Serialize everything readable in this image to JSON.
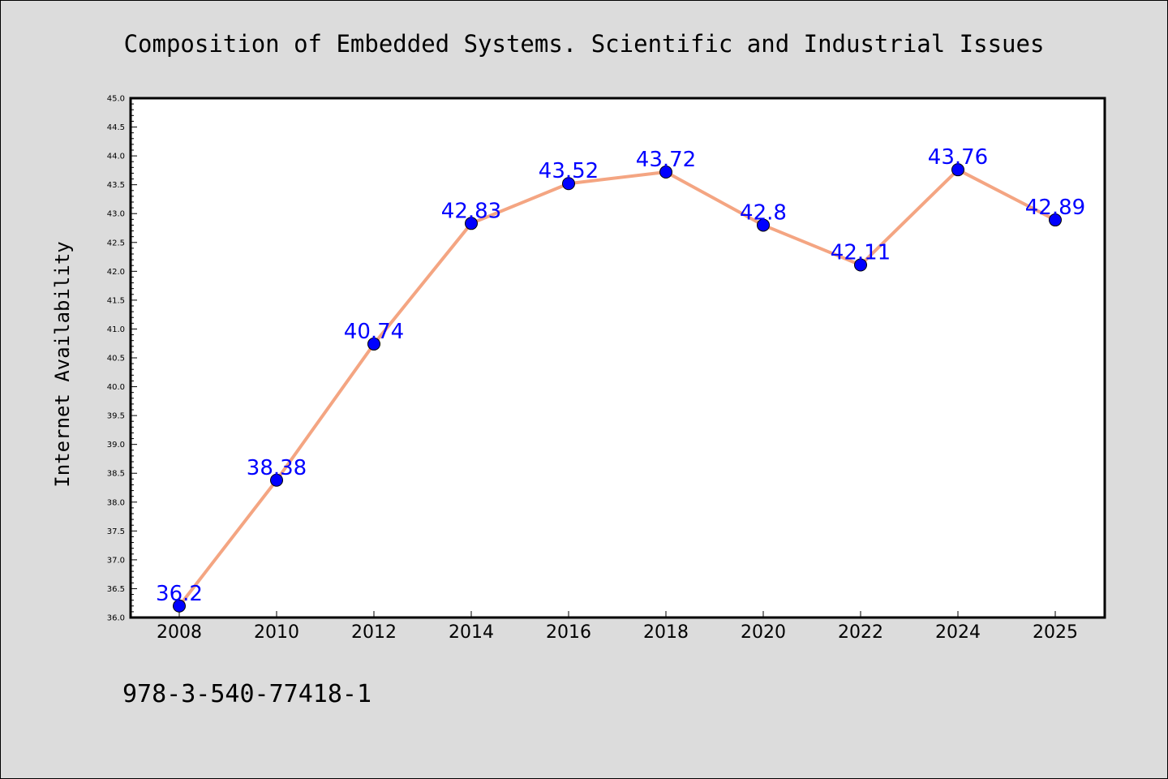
{
  "chart_data": {
    "type": "line",
    "title": "Composition of Embedded Systems. Scientific and Industrial Issues",
    "xlabel": "",
    "ylabel": "Internet Availability",
    "categories": [
      "2008",
      "2010",
      "2012",
      "2014",
      "2016",
      "2018",
      "2020",
      "2022",
      "2024",
      "2025"
    ],
    "values": [
      36.2,
      38.38,
      40.74,
      42.83,
      43.52,
      43.72,
      42.8,
      42.11,
      43.76,
      42.89
    ],
    "data_labels": [
      "36.2",
      "38.38",
      "40.74",
      "42.83",
      "43.52",
      "43.72",
      "42.8",
      "42.11",
      "43.76",
      "42.89"
    ],
    "ylim": [
      36.0,
      45.0
    ],
    "yticks": [
      "36.0",
      "36.5",
      "37.0",
      "37.5",
      "38.0",
      "38.5",
      "39.0",
      "39.5",
      "40.0",
      "40.5",
      "41.0",
      "41.5",
      "42.0",
      "42.5",
      "43.0",
      "43.5",
      "44.0",
      "44.5",
      "45.0"
    ],
    "grid": false,
    "line_color": "#f4a582",
    "marker_color": "#0000ff",
    "label_color": "#0000ff"
  },
  "footnote": "978-3-540-77418-1",
  "colors": {
    "background": "#dcdcdc",
    "plot_background": "#ffffff"
  }
}
